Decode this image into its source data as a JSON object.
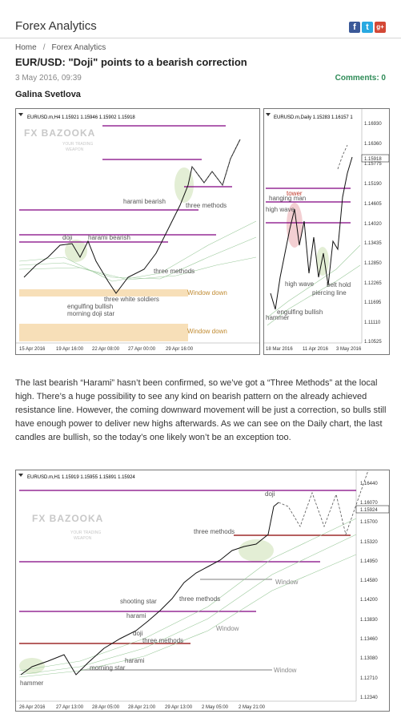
{
  "header": {
    "site_title": "Forex Analytics",
    "social": [
      {
        "name": "facebook-icon",
        "glyph": "f"
      },
      {
        "name": "twitter-icon",
        "glyph": "t"
      },
      {
        "name": "google-plus-icon",
        "glyph": "g+"
      }
    ]
  },
  "breadcrumb": {
    "home": "Home",
    "separator": "/",
    "current": "Forex Analytics"
  },
  "post": {
    "title": "EUR/USD: \"Doji\" points to a bearish correction",
    "date": "3 May 2016, 09:39",
    "comments": "Comments: 0",
    "author": "Galina Svetlova",
    "body": "The last bearish “Harami” hasn’t been confirmed, so we’ve got a “Three Methods” at the local high. There’s a huge possibility to see any kind on bearish pattern on the already achieved resistance line. However, the coming downward movement will be just a correction, so bulls still have enough power to deliver new highs afterwards. As we can see on the Daily chart, the last candles are bullish, so the today’s one likely won’t be an exception too."
  },
  "watermark": {
    "main": "FX BAZOOKA",
    "sub1": "YOUR TRADING",
    "sub2": "WEAPON"
  },
  "charts": {
    "h4": {
      "info": "EURUSD.m,H4  1.15921 1.15946 1.15902 1.15918",
      "x_ticks": [
        "15 Apr 2016",
        "19 Apr 16:00",
        "22 Apr 08:00",
        "27 Apr 00:00",
        "29 Apr 16:00"
      ],
      "annotations": [
        "harami bearish",
        "three methods",
        "doji",
        "harami bearish",
        "three methods",
        "Window down",
        "three white soldiers",
        "engulfing bullish",
        "morning doji star",
        "Window down"
      ]
    },
    "daily": {
      "info": "EURUSD.m,Daily  1.15283 1.16157 1",
      "y_ticks": [
        "1.16930",
        "1.16360",
        "1.15775",
        "1.15190",
        "1.14605",
        "1.14020",
        "1.13435",
        "1.12850",
        "1.12265",
        "1.11695",
        "1.11110",
        "1.10525"
      ],
      "price_label": "1.15918",
      "x_ticks": [
        "18 Mar 2016",
        "11 Apr 2016",
        "3 May 2016"
      ],
      "annotations": [
        "tower",
        "hanging man",
        "high wave",
        "high wave",
        "belt hold",
        "piercing line",
        "engulfing bullish",
        "hammer"
      ]
    },
    "h1": {
      "info": "EURUSD.m,H1  1.15919 1.15955 1.15891 1.15924",
      "y_ticks": [
        "1.16440",
        "1.16070",
        "1.15700",
        "1.15320",
        "1.14950",
        "1.14580",
        "1.14200",
        "1.13830",
        "1.13460",
        "1.13080",
        "1.12710",
        "1.12340"
      ],
      "price_label": "1.15924",
      "x_ticks": [
        "26 Apr 2016",
        "27 Apr 13:00",
        "28 Apr 05:00",
        "28 Apr 21:00",
        "29 Apr 13:00",
        "2 May 05:00",
        "2 May 21:00"
      ],
      "annotations": [
        "doji",
        "three methods",
        "Window",
        "shooting star",
        "three methods",
        "harami",
        "Window",
        "doji",
        "three methods",
        "harami",
        "morning star",
        "Window",
        "hammer"
      ]
    }
  },
  "colors": {
    "accent_green": "#2e8b57",
    "level_line": "#800080",
    "support_line": "#8b0000",
    "window_fill": "#f7dfb8",
    "candle": "#000000"
  }
}
